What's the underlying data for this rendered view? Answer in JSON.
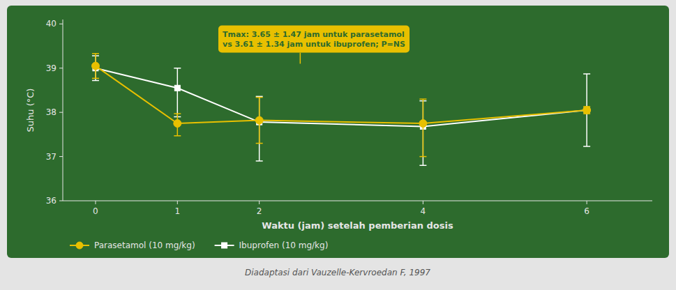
{
  "chart_data": {
    "type": "line",
    "x_label": "Waktu (jam) setelah pemberian dosis",
    "y_label": "Suhu (°C)",
    "caption": "Diadaptasi dari Vauzelle-Kervroedan F, 1997",
    "x": [
      0,
      1,
      2,
      4,
      6
    ],
    "xlim": [
      -0.4,
      6.8
    ],
    "ylim": [
      36,
      40.1
    ],
    "xticks": [
      0,
      1,
      2,
      4,
      6
    ],
    "yticks": [
      36,
      37,
      38,
      39,
      40
    ],
    "series": [
      {
        "name": "Ibuprofen (10 mg/kg)",
        "color": "#ffffff",
        "marker": "square",
        "values": [
          39.0,
          38.55,
          37.78,
          37.68,
          38.05
        ],
        "error_low": [
          0.28,
          0.65,
          0.88,
          0.88,
          0.82
        ],
        "error_high": [
          0.28,
          0.45,
          0.58,
          0.58,
          0.82
        ]
      },
      {
        "name": "Parasetamol (10 mg/kg)",
        "color": "#e8c000",
        "marker": "circle",
        "values": [
          39.05,
          37.75,
          37.82,
          37.75,
          38.05
        ],
        "error_low": [
          0.28,
          0.28,
          0.52,
          0.75,
          0.08
        ],
        "error_high": [
          0.28,
          0.22,
          0.52,
          0.55,
          0.08
        ]
      }
    ],
    "annotations": [
      {
        "text": "Tmax: 3.65 ± 1.47 jam untuk parasetamol\nvs 3.61 ± 1.34 jam untuk ibuprofen; P=NS",
        "x": 1.5,
        "y": 39.35,
        "arrow_x": 2.5,
        "arrow_y": 39.1,
        "color": "#e8c000"
      }
    ],
    "legend": "lower left"
  }
}
